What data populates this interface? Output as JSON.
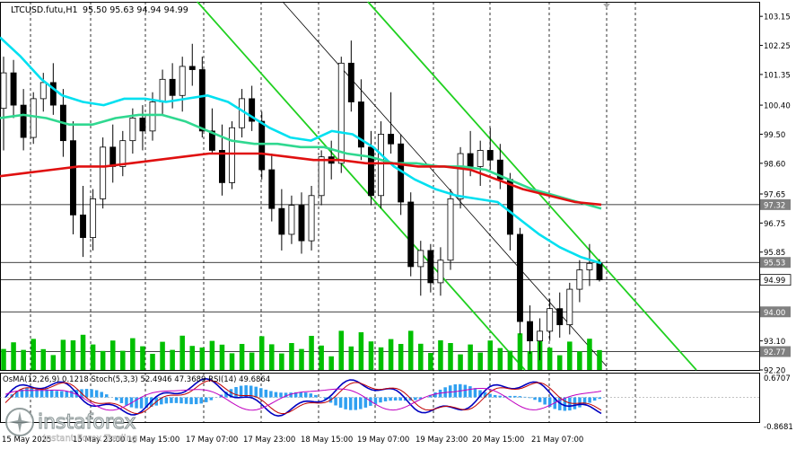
{
  "header": {
    "symbol": "LTCUSD.futu,H1",
    "ohlc": "95.50 95.63 94.94 94.99"
  },
  "indicator_label": "OsMA(12,26,9) 0.1218  Stoch(5,3,3) 52.4946 47.3689  RSI(14) 49.6864",
  "watermark": {
    "brand": "instaforex",
    "tagline": "Instant Forex Trading"
  },
  "colors": {
    "bg": "#ffffff",
    "candle": "#000000",
    "volume": "#00c000",
    "ma_fast": "#00e0f0",
    "ma_mid": "#30d890",
    "ma_slow": "#e01010",
    "channel": "#20d020",
    "channel_thin": "#000000",
    "grid": "#000000",
    "hline": "#000000",
    "tag_bg": "#808080",
    "osma": "#30a0f0",
    "stoch_main": "#0000c0",
    "stoch_signal": "#c00000",
    "rsi": "#c000c0"
  },
  "chart_data": {
    "type": "candlestick",
    "symbol": "LTCUSD.futu",
    "timeframe": "H1",
    "y_axis_ticks": [
      103.15,
      102.25,
      101.35,
      100.4,
      99.5,
      98.6,
      97.65,
      96.75,
      95.85,
      94.99,
      94.0,
      93.1,
      92.2
    ],
    "ylim": [
      92.2,
      103.15
    ],
    "price_tags": [
      {
        "value": "97.32",
        "type": "ma_level"
      },
      {
        "value": "95.53",
        "type": "ma_level"
      },
      {
        "value": "94.99",
        "type": "current"
      },
      {
        "value": "94.00",
        "type": "level"
      },
      {
        "value": "92.77",
        "type": "level"
      }
    ],
    "x_tick_labels": [
      "15 May 2025",
      "15 May 23:00",
      "16 May 15:00",
      "17 May 07:00",
      "17 May 23:00",
      "18 May 15:00",
      "19 May 07:00",
      "19 May 23:00",
      "20 May 15:00",
      "21 May 07:00"
    ],
    "candles": [
      [
        100.3,
        101.9,
        99.0,
        101.4
      ],
      [
        101.4,
        101.8,
        100.0,
        100.4
      ],
      [
        100.4,
        100.9,
        99.0,
        99.4
      ],
      [
        99.4,
        100.8,
        99.2,
        100.6
      ],
      [
        100.6,
        101.4,
        100.2,
        101.1
      ],
      [
        101.1,
        101.7,
        100.1,
        100.4
      ],
      [
        100.4,
        100.9,
        98.8,
        99.3
      ],
      [
        99.3,
        99.9,
        96.4,
        97.0
      ],
      [
        97.0,
        97.9,
        95.7,
        96.3
      ],
      [
        96.3,
        97.8,
        95.9,
        97.5
      ],
      [
        97.5,
        99.4,
        97.2,
        99.1
      ],
      [
        99.1,
        99.8,
        98.0,
        98.5
      ],
      [
        98.5,
        99.6,
        98.2,
        99.3
      ],
      [
        99.3,
        100.3,
        98.9,
        100.0
      ],
      [
        100.0,
        100.4,
        99.0,
        99.6
      ],
      [
        99.6,
        100.8,
        99.3,
        100.5
      ],
      [
        100.5,
        101.5,
        100.1,
        101.2
      ],
      [
        101.2,
        101.7,
        100.3,
        100.7
      ],
      [
        100.7,
        101.9,
        100.2,
        101.6
      ],
      [
        101.6,
        102.3,
        101.0,
        101.5
      ],
      [
        101.5,
        101.9,
        99.4,
        99.6
      ],
      [
        99.6,
        100.3,
        98.9,
        99.0
      ],
      [
        99.0,
        99.8,
        97.6,
        98.0
      ],
      [
        98.0,
        99.9,
        97.8,
        99.7
      ],
      [
        99.7,
        100.9,
        99.4,
        100.6
      ],
      [
        100.6,
        101.0,
        99.6,
        99.9
      ],
      [
        99.9,
        100.2,
        98.1,
        98.4
      ],
      [
        98.4,
        98.9,
        96.8,
        97.2
      ],
      [
        97.2,
        97.8,
        95.9,
        96.4
      ],
      [
        96.4,
        97.6,
        96.1,
        97.3
      ],
      [
        97.3,
        97.7,
        95.8,
        96.2
      ],
      [
        96.2,
        97.9,
        95.9,
        97.6
      ],
      [
        97.6,
        99.0,
        97.3,
        98.8
      ],
      [
        98.8,
        99.3,
        98.1,
        98.6
      ],
      [
        98.6,
        101.9,
        98.3,
        101.7
      ],
      [
        101.7,
        102.4,
        100.2,
        100.5
      ],
      [
        100.5,
        101.2,
        98.7,
        99.1
      ],
      [
        99.1,
        99.6,
        97.3,
        97.6
      ],
      [
        97.6,
        99.9,
        97.2,
        99.5
      ],
      [
        99.5,
        100.8,
        98.9,
        99.2
      ],
      [
        99.2,
        99.5,
        97.0,
        97.4
      ],
      [
        97.4,
        97.7,
        95.1,
        95.4
      ],
      [
        95.4,
        96.2,
        94.5,
        95.9
      ],
      [
        95.9,
        96.1,
        94.6,
        94.9
      ],
      [
        94.9,
        96.0,
        94.5,
        95.6
      ],
      [
        95.6,
        97.8,
        95.3,
        97.5
      ],
      [
        97.5,
        99.1,
        97.2,
        98.9
      ],
      [
        98.9,
        99.6,
        98.2,
        98.5
      ],
      [
        98.5,
        99.3,
        97.9,
        99.0
      ],
      [
        99.0,
        99.7,
        98.4,
        98.7
      ],
      [
        98.7,
        99.2,
        97.8,
        98.1
      ],
      [
        98.1,
        98.3,
        95.9,
        96.4
      ],
      [
        96.4,
        96.6,
        93.3,
        93.7
      ],
      [
        93.7,
        94.2,
        92.7,
        93.1
      ],
      [
        93.1,
        93.8,
        92.5,
        93.4
      ],
      [
        93.4,
        94.4,
        93.1,
        94.1
      ],
      [
        94.1,
        94.6,
        93.2,
        93.6
      ],
      [
        93.6,
        94.9,
        93.3,
        94.7
      ],
      [
        94.7,
        95.6,
        94.3,
        95.3
      ],
      [
        95.3,
        96.1,
        94.8,
        95.5
      ],
      [
        95.5,
        95.63,
        94.94,
        94.99
      ]
    ],
    "moving_averages": [
      {
        "color": "#00e0f0",
        "values": [
          102.5,
          101.9,
          101.2,
          100.7,
          100.5,
          100.4,
          100.6,
          100.6,
          100.5,
          100.6,
          100.7,
          100.5,
          100.1,
          99.7,
          99.4,
          99.3,
          99.6,
          99.5,
          99.1,
          98.5,
          98.1,
          97.8,
          97.6,
          97.5,
          97.4,
          96.9,
          96.4,
          96.0,
          95.7,
          95.5
        ]
      },
      {
        "color": "#30d890",
        "values": [
          100.0,
          100.1,
          100.0,
          99.8,
          99.8,
          100.0,
          100.1,
          100.1,
          99.9,
          99.6,
          99.3,
          99.2,
          99.2,
          99.1,
          99.1,
          98.9,
          98.8,
          98.6,
          98.6,
          98.5,
          98.5,
          98.4,
          98.1,
          97.8,
          97.6,
          97.4,
          97.2
        ]
      },
      {
        "color": "#e01010",
        "values": [
          98.2,
          98.3,
          98.4,
          98.5,
          98.5,
          98.6,
          98.7,
          98.8,
          98.9,
          98.9,
          98.9,
          98.8,
          98.7,
          98.7,
          98.6,
          98.6,
          98.5,
          98.5,
          98.4,
          98.1,
          97.8,
          97.6,
          97.4,
          97.32
        ]
      }
    ],
    "oscillator": {
      "name": "OsMA(12,26,9) / Stoch(5,3,3) / RSI(14)",
      "osma": 0.1218,
      "stoch_main": 52.4946,
      "stoch_signal": 47.3689,
      "rsi": 49.6864,
      "axis_ticks": [
        "0.6707",
        "-0.8681"
      ]
    }
  }
}
